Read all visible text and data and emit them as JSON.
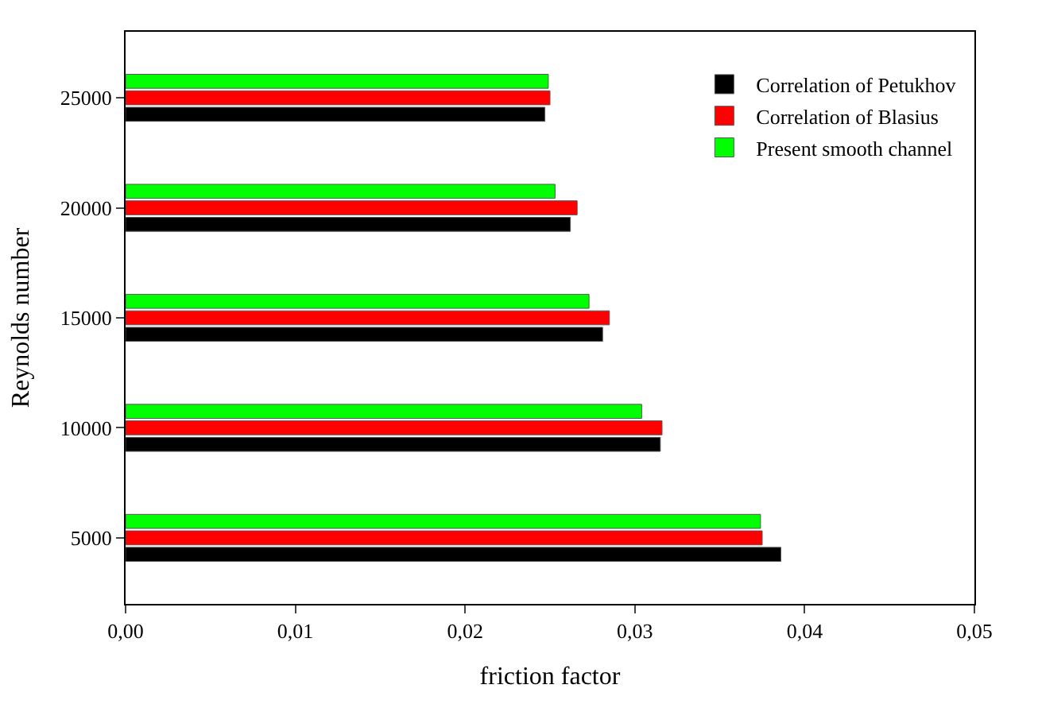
{
  "chart_data": {
    "type": "bar",
    "orientation": "horizontal",
    "xlabel": "friction factor",
    "ylabel": "Reynolds number",
    "categories": [
      "25000",
      "20000",
      "15000",
      "10000",
      "5000"
    ],
    "series": [
      {
        "name": "Correlation of Petukhov",
        "color": "#000000",
        "values": [
          0.0247,
          0.0262,
          0.0281,
          0.0315,
          0.0386
        ]
      },
      {
        "name": "Correlation of Blasius",
        "color": "#ff0000",
        "values": [
          0.025,
          0.0266,
          0.0285,
          0.0316,
          0.0375
        ]
      },
      {
        "name": "Present smooth channel",
        "color": "#00ff00",
        "values": [
          0.0249,
          0.0253,
          0.0273,
          0.0304,
          0.0374
        ]
      }
    ],
    "xlim": [
      0,
      0.05
    ],
    "xticks": [
      {
        "value": 0,
        "label": "0,00"
      },
      {
        "value": 0.01,
        "label": "0,01"
      },
      {
        "value": 0.02,
        "label": "0,02"
      },
      {
        "value": 0.03,
        "label": "0,03"
      },
      {
        "value": 0.04,
        "label": "0,04"
      },
      {
        "value": 0.05,
        "label": "0,05"
      }
    ],
    "legend": "top right"
  }
}
